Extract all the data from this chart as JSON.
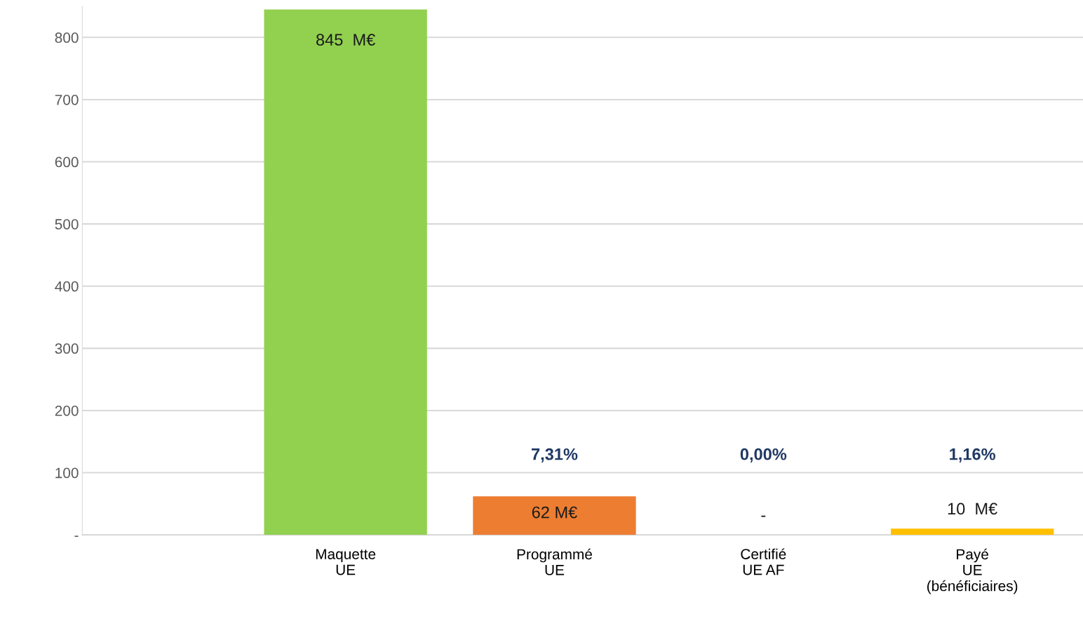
{
  "chart_data": {
    "type": "bar",
    "categories": [
      null,
      "Maquette\nUE",
      "Programmé\nUE",
      "Certifié\nUE AF",
      "Payé\nUE\n(bénéficiaires)"
    ],
    "values": [
      null,
      845,
      62,
      0,
      10
    ],
    "colors": [
      "#92d050",
      "#92d050",
      "#ed7d31",
      "#a5a5a5",
      "#ffc000"
    ],
    "value_labels": [
      null,
      "845  M€",
      "62 M€",
      "-",
      "10  M€"
    ],
    "annotations": [
      "7,31%",
      "0,00%",
      "1,16%"
    ],
    "ylim": [
      0,
      850
    ],
    "yticks": [
      {
        "value": 0,
        "label": "-"
      },
      100,
      200,
      300,
      400,
      500,
      600,
      700,
      800
    ],
    "grid": "y",
    "legend": false
  }
}
